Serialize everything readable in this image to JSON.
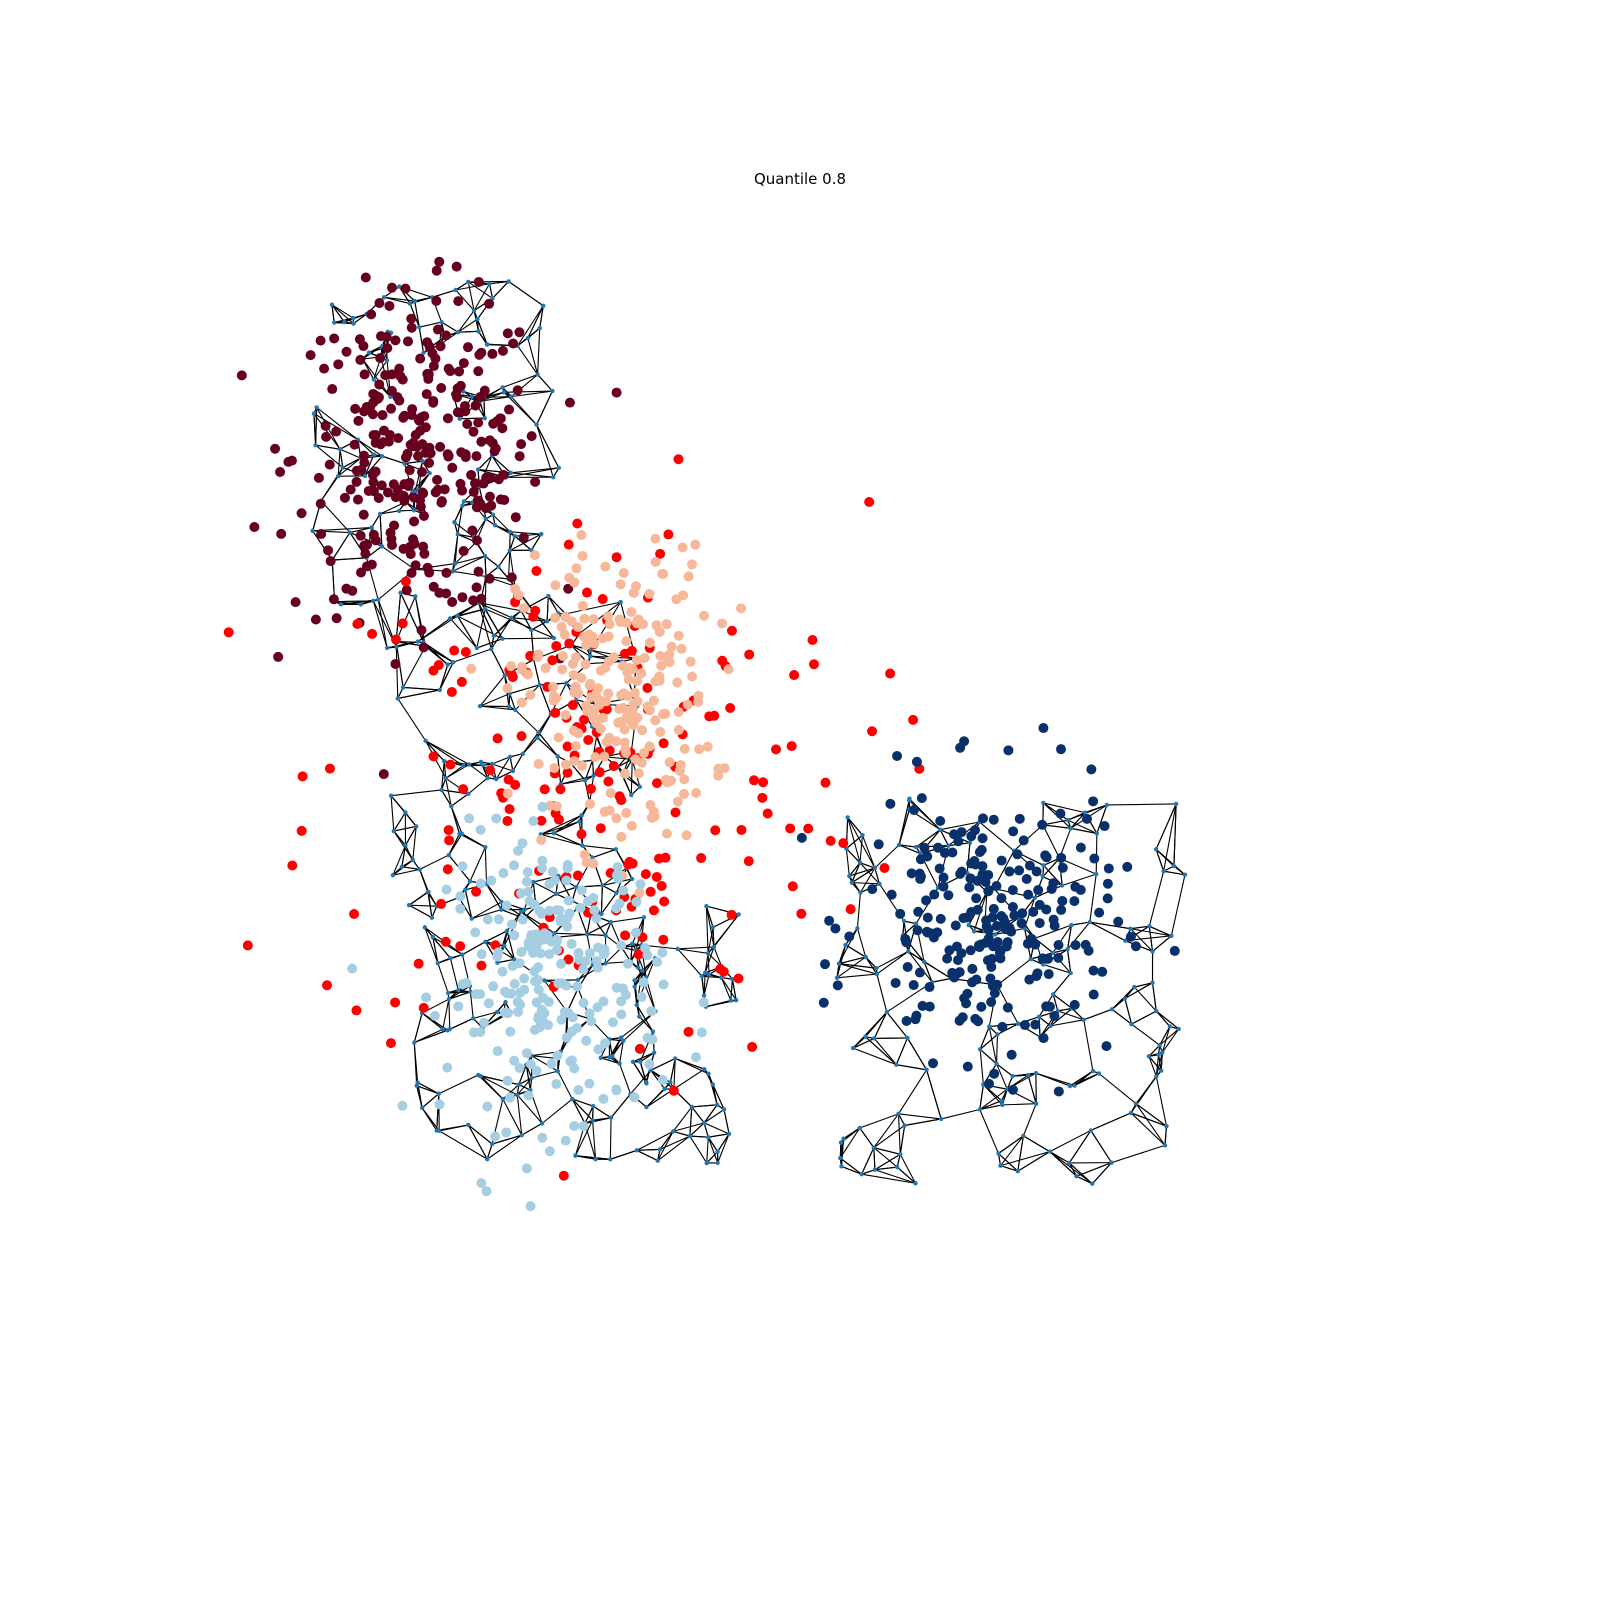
{
  "chart_data": {
    "type": "scatter",
    "title": "Quantile 0.8",
    "axes_visible": false,
    "grid": false,
    "xlim": [
      0,
      1000
    ],
    "ylim": [
      0,
      1000
    ],
    "graph": {
      "node_color": "#1f77b4",
      "edge_color": "#000000",
      "regions": [
        {
          "x": [
            92,
            300
          ],
          "y": [
            650,
            958
          ],
          "n": 130
        },
        {
          "x": [
            158,
            368
          ],
          "y": [
            425,
            700
          ],
          "n": 120
        },
        {
          "x": [
            178,
            452
          ],
          "y": [
            220,
            437
          ],
          "n": 130
        },
        {
          "x": [
            530,
            822
          ],
          "y": [
            205,
            535
          ],
          "n": 150
        },
        {
          "x": [
            355,
            380
          ],
          "y": [
            280,
            400
          ],
          "n": 12
        }
      ]
    },
    "series": [
      {
        "color": "#67001f",
        "cx": 183,
        "cy": 812,
        "sx": 52,
        "sy": 66,
        "n": 290
      },
      {
        "color": "#ff0000",
        "cx": 325,
        "cy": 540,
        "sx": 115,
        "sy": 115,
        "n": 200
      },
      {
        "color": "#f7b799",
        "cx": 346,
        "cy": 610,
        "sx": 40,
        "sy": 62,
        "n": 230
      },
      {
        "color": "#a6cee3",
        "cx": 296,
        "cy": 375,
        "sx": 45,
        "sy": 60,
        "n": 220
      },
      {
        "color": "#08306b",
        "cx": 658,
        "cy": 422,
        "sx": 52,
        "sy": 56,
        "n": 230
      }
    ]
  }
}
